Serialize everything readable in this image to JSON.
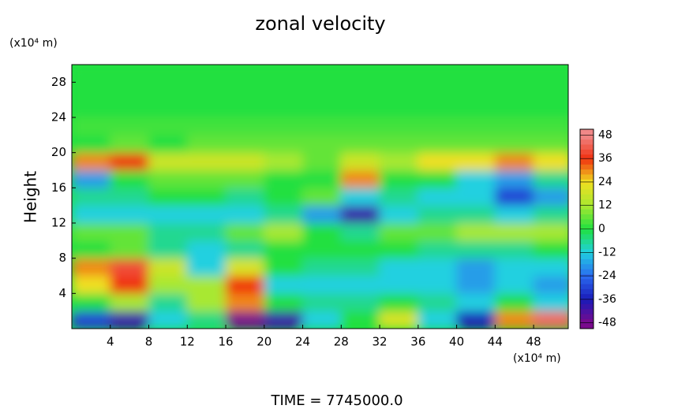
{
  "chart_data": {
    "type": "heatmap",
    "title": "zonal velocity",
    "ylabel": "Height",
    "x_unit": "(x10⁴ m)",
    "y_unit": "(x10⁴ m)",
    "footer": "TIME = 7745000.0",
    "xlim": [
      0,
      51.6
    ],
    "ylim": [
      0,
      30
    ],
    "xticks": [
      4,
      8,
      12,
      16,
      20,
      24,
      28,
      32,
      36,
      40,
      44,
      48
    ],
    "yticks": [
      4,
      8,
      12,
      16,
      20,
      24,
      28
    ],
    "x": [
      2,
      6,
      10,
      14,
      18,
      22,
      26,
      30,
      34,
      38,
      42,
      46,
      50
    ],
    "y": [
      1,
      3,
      5,
      7,
      9,
      11,
      13,
      15,
      17,
      19,
      21,
      23,
      25,
      27,
      29
    ],
    "z": [
      [
        -30,
        -40,
        -12,
        -5,
        -48,
        -40,
        -12,
        0,
        20,
        -12,
        -36,
        30,
        44
      ],
      [
        0,
        12,
        -6,
        12,
        30,
        0,
        -6,
        -6,
        0,
        -6,
        -12,
        0,
        -12
      ],
      [
        24,
        36,
        12,
        12,
        36,
        -12,
        -12,
        -12,
        -12,
        -12,
        -18,
        -12,
        -18
      ],
      [
        30,
        40,
        18,
        -12,
        20,
        0,
        -6,
        -6,
        -12,
        -12,
        -18,
        -12,
        -12
      ],
      [
        0,
        6,
        -6,
        -12,
        -6,
        0,
        0,
        0,
        0,
        -6,
        -6,
        -6,
        0
      ],
      [
        6,
        6,
        -6,
        -6,
        6,
        12,
        0,
        -6,
        6,
        6,
        12,
        12,
        12
      ],
      [
        -12,
        -12,
        -12,
        -12,
        -12,
        -6,
        -18,
        -40,
        -12,
        -6,
        -6,
        -12,
        -6
      ],
      [
        -6,
        -6,
        0,
        0,
        -6,
        0,
        6,
        -12,
        -6,
        -12,
        -12,
        -30,
        -18
      ],
      [
        -18,
        0,
        6,
        6,
        6,
        0,
        0,
        30,
        0,
        0,
        -12,
        -18,
        -6
      ],
      [
        30,
        36,
        18,
        18,
        18,
        12,
        6,
        18,
        12,
        24,
        24,
        30,
        24
      ],
      [
        0,
        6,
        0,
        6,
        6,
        6,
        6,
        6,
        6,
        6,
        6,
        6,
        6
      ],
      [
        3,
        3,
        3,
        3,
        3,
        3,
        3,
        3,
        3,
        3,
        3,
        3,
        3
      ],
      [
        0,
        0,
        0,
        0,
        0,
        0,
        0,
        0,
        0,
        0,
        0,
        0,
        0
      ],
      [
        0,
        0,
        0,
        0,
        0,
        0,
        0,
        0,
        0,
        0,
        0,
        0,
        0
      ],
      [
        0,
        0,
        0,
        0,
        0,
        0,
        0,
        0,
        0,
        0,
        0,
        0,
        0
      ]
    ],
    "zlim": [
      -51,
      51
    ],
    "zticks": [
      -48,
      -36,
      -24,
      -12,
      0,
      12,
      24,
      36,
      48
    ],
    "colors": [
      "#7a0a8c",
      "#1a1ab8",
      "#2a6af0",
      "#20d0e0",
      "#20e040",
      "#a8e830",
      "#f0e020",
      "#f03010",
      "#f08888"
    ]
  }
}
